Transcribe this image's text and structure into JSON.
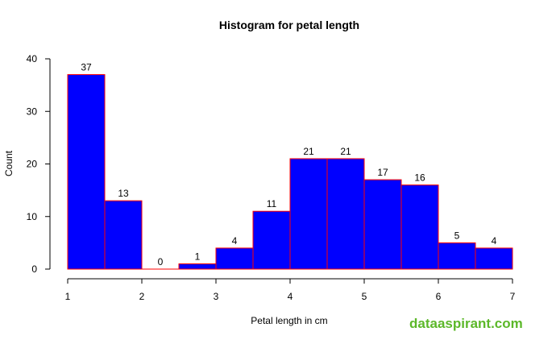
{
  "chart_data": {
    "type": "bar",
    "title": "Histogram for petal length",
    "xlabel": "Petal length in cm",
    "ylabel": "Count",
    "bins": [
      {
        "x0": 1.0,
        "x1": 1.5,
        "count": 37
      },
      {
        "x0": 1.5,
        "x1": 2.0,
        "count": 13
      },
      {
        "x0": 2.0,
        "x1": 2.5,
        "count": 0
      },
      {
        "x0": 2.5,
        "x1": 3.0,
        "count": 1
      },
      {
        "x0": 3.0,
        "x1": 3.5,
        "count": 4
      },
      {
        "x0": 3.5,
        "x1": 4.0,
        "count": 11
      },
      {
        "x0": 4.0,
        "x1": 4.5,
        "count": 21
      },
      {
        "x0": 4.5,
        "x1": 5.0,
        "count": 21
      },
      {
        "x0": 5.0,
        "x1": 5.5,
        "count": 17
      },
      {
        "x0": 5.5,
        "x1": 6.0,
        "count": 16
      },
      {
        "x0": 6.0,
        "x1": 6.5,
        "count": 5
      },
      {
        "x0": 6.5,
        "x1": 7.0,
        "count": 4
      }
    ],
    "xlim": [
      1,
      7
    ],
    "ylim": [
      0,
      40
    ],
    "xticks": [
      "1",
      "2",
      "3",
      "4",
      "5",
      "6",
      "7"
    ],
    "yticks": [
      "0",
      "10",
      "20",
      "30",
      "40"
    ],
    "bar_fill": "#0000ff",
    "bar_border": "#ff0000",
    "grid": false,
    "legend": "none"
  },
  "watermark": {
    "text": "dataaspirant.com",
    "color": "#5cb82a"
  }
}
